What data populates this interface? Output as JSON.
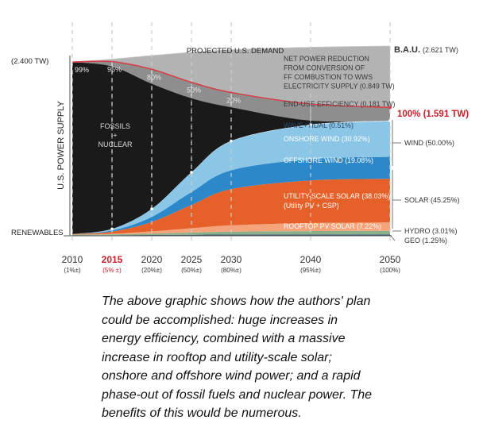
{
  "chart_data": {
    "type": "area",
    "ylabel": "U.S. POWER SUPPLY",
    "x": [
      2010,
      2015,
      2020,
      2025,
      2030,
      2040,
      2050
    ],
    "x_ticks": [
      {
        "year": "2010",
        "pct": "(1%±)",
        "highlight": false
      },
      {
        "year": "2015",
        "pct": "(5% ±)",
        "highlight": true
      },
      {
        "year": "2020",
        "pct": "(20%±)",
        "highlight": false
      },
      {
        "year": "2025",
        "pct": "(50%±)",
        "highlight": false
      },
      {
        "year": "2030",
        "pct": "(80%±)",
        "highlight": false
      },
      {
        "year": "2040",
        "pct": "(95%±)",
        "highlight": false
      },
      {
        "year": "2050",
        "pct": "(100%)",
        "highlight": false
      }
    ],
    "y_unit": "TW",
    "ylim": [
      0,
      2.8
    ],
    "start_label": "(2.400 TW)",
    "bau_label": "B.A.U.",
    "bau_value": "(2.621 TW)",
    "projected_demand_label": "PROJECTED U.S. DEMAND",
    "end_label": "100% (1.591 TW)",
    "renewables_label": "RENEWABLES",
    "fossils_label": [
      "FOSSILS",
      "+",
      "NUCLEAR"
    ],
    "fossil_pct_labels": [
      {
        "x": 2010,
        "label": "99%"
      },
      {
        "x": 2015,
        "label": "95%"
      },
      {
        "x": 2020,
        "label": "80%"
      },
      {
        "x": 2025,
        "label": "50%"
      },
      {
        "x": 2030,
        "label": "20%"
      }
    ],
    "series": [
      {
        "name": "GEO (1.25%)",
        "color": "#3d5a78",
        "values": [
          0.006,
          0.008,
          0.011,
          0.014,
          0.017,
          0.019,
          0.02
        ]
      },
      {
        "name": "HYDRO (3.01%)",
        "color": "#8ab08a",
        "values": [
          0.01,
          0.012,
          0.02,
          0.03,
          0.04,
          0.046,
          0.048
        ]
      },
      {
        "name": "ROOFTOP PV SOLAR (7.22%)",
        "color": "#f4a37a",
        "values": [
          0.004,
          0.008,
          0.03,
          0.06,
          0.088,
          0.11,
          0.115
        ]
      },
      {
        "name": "UTILITY-SCALE SOLAR (38.03%)",
        "color": "#e6612a",
        "values": [
          0.004,
          0.03,
          0.13,
          0.32,
          0.5,
          0.59,
          0.605
        ]
      },
      {
        "name": "OFFSHORE WIND (19.08%)",
        "color": "#2c88c8",
        "values": [
          0.0,
          0.015,
          0.07,
          0.18,
          0.26,
          0.295,
          0.303
        ]
      },
      {
        "name": "ONSHORE WIND (30.92%)",
        "color": "#8cc6e6",
        "values": [
          0.0,
          0.022,
          0.11,
          0.27,
          0.4,
          0.47,
          0.492
        ]
      },
      {
        "name": "WAVE+TIDAL (0.51%)",
        "color": "#ddeef7",
        "values": [
          0.0,
          0.0,
          0.001,
          0.003,
          0.005,
          0.007,
          0.008
        ]
      },
      {
        "name": "FOSSILS + NUCLEAR",
        "color": "#1a1a1a",
        "values": [
          2.376,
          2.245,
          1.728,
          1.023,
          0.465,
          0.054,
          0.0
        ]
      }
    ],
    "overlay": [
      {
        "name": "END-USE EFFICIENCY (0.181 TW)",
        "color": "#8e8e8e",
        "top": [
          2.4,
          2.405,
          2.3,
          2.12,
          1.98,
          1.82,
          1.772
        ]
      },
      {
        "name": "NET POWER REDUCTION FROM CONVERSION OF FF COMBUSTION TO WWS ELECTRICITY SUPPLY (0.849 TW)",
        "color": "#b3b3b3",
        "top": [
          2.4,
          2.44,
          2.49,
          2.535,
          2.57,
          2.605,
          2.621
        ]
      },
      {
        "name": "PROJECTED U.S. DEMAND",
        "color": "#d9d9d9",
        "top": [
          2.4,
          2.44,
          2.49,
          2.535,
          2.57,
          2.605,
          2.621
        ]
      }
    ],
    "labels": {
      "net_power": [
        "NET POWER REDUCTION",
        "FROM CONVERSION OF",
        "FF COMBUSTION TO WWS",
        "ELECTRICITY SUPPLY (0.849 TW)"
      ],
      "efficiency": "END-USE EFFICIENCY (0.181 TW)",
      "wave": "WAVE+TIDAL (0.51%)",
      "onshore": "ONSHORE WIND (30.92%)",
      "offshore": "OFFSHORE WIND (19.08%)",
      "utility": [
        "UTILITY-SCALE SOLAR (38.03%)",
        "(Utility PV + CSP)"
      ],
      "rooftop": "ROOFTOP PV SOLAR (7.22%)"
    },
    "group_labels": {
      "wind": "WIND (50.00%)",
      "solar": "SOLAR (45.25%)",
      "hydro": "HYDRO (3.01%)",
      "geo": "GEO (1.25%)"
    },
    "colors": {
      "red_line": "#d6404a",
      "highlight_red": "#c8202a",
      "dashed": "#cccccc"
    }
  },
  "caption": "The above graphic shows how the authors' plan could be accomplished: huge increases in energy efficiency, combined with a massive increase in rooftop and utility-scale solar; onshore and offshore wind power; and a rapid phase-out of fossil fuels and nuclear power. The benefits of this would be numerous."
}
